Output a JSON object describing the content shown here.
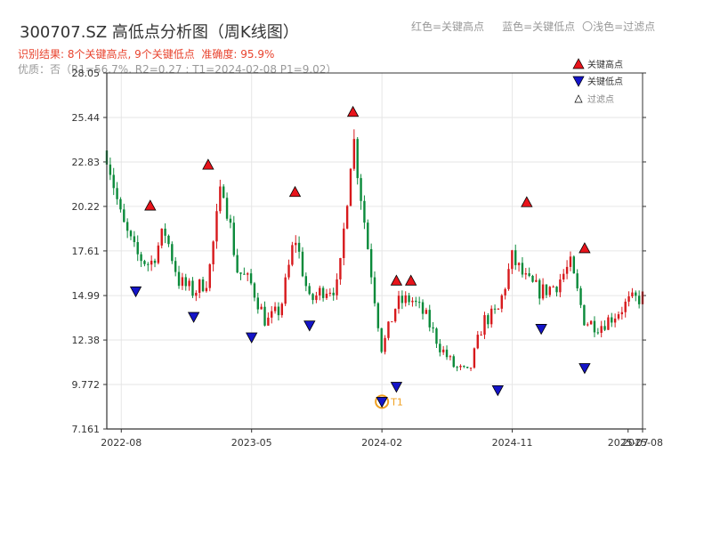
{
  "title": "300707.SZ 高低点分析图（周K线图）",
  "color_legend": {
    "red": "红色=关键高点",
    "blue": "蓝色=关键低点",
    "light": "〇浅色=过滤点"
  },
  "result_text": "识别结果: 8个关键高点, 9个关键低点",
  "accuracy_text": "准确度: 95.9%",
  "quality_text": "优质：否（R1=56.7%, R2=0.27 ; T1=2024-02-08 P1=9.02）",
  "colors": {
    "up": "#d7191c",
    "down": "#0a8a3a",
    "high_marker": "#e8141b",
    "low_marker": "#1414c8",
    "t1_marker": "#f0a020",
    "title": "#333333",
    "result": "#e8432e",
    "quality": "#999999"
  },
  "chart_data": {
    "type": "candlestick",
    "title": "300707.SZ 高低点分析图（周K线图）",
    "x_ticks": [
      "2022-08",
      "2023-05",
      "2024-02",
      "2024-11",
      "2025-07",
      "2025-08"
    ],
    "x_range": [
      "2022-07",
      "2025-08"
    ],
    "y_ticks": [
      "7.161",
      "9.772",
      "12.38",
      "14.99",
      "17.61",
      "20.22",
      "22.83",
      "25.44",
      "28.05"
    ],
    "ylim": [
      7.161,
      28.05
    ],
    "grid": true,
    "legend_position": "top-right",
    "legend": [
      "关键高点",
      "关键低点",
      "过滤点"
    ],
    "close_anchors": [
      [
        "2022-07",
        23.5
      ],
      [
        "2022-08",
        19.4
      ],
      [
        "2022-09",
        17.4
      ],
      [
        "2022-10",
        16.8
      ],
      [
        "2022-11",
        18.8
      ],
      [
        "2022-12",
        15.8
      ],
      [
        "2023-01",
        15.2
      ],
      [
        "2023-02",
        16.0
      ],
      [
        "2023-03",
        21.8
      ],
      [
        "2023-04",
        16.5
      ],
      [
        "2023-05",
        15.6
      ],
      [
        "2023-06",
        13.4
      ],
      [
        "2023-07",
        14.2
      ],
      [
        "2023-08",
        18.5
      ],
      [
        "2023-09",
        14.6
      ],
      [
        "2023-10",
        15.4
      ],
      [
        "2023-11",
        15.5
      ],
      [
        "2023-12",
        24.5
      ],
      [
        "2024-01",
        18.0
      ],
      [
        "2024-02",
        11.8
      ],
      [
        "2024-03",
        14.5
      ],
      [
        "2024-04",
        14.8
      ],
      [
        "2024-05",
        13.8
      ],
      [
        "2024-06",
        12.0
      ],
      [
        "2024-07",
        10.8
      ],
      [
        "2024-08",
        10.4
      ],
      [
        "2024-09",
        13.5
      ],
      [
        "2024-10",
        14.0
      ],
      [
        "2024-11",
        17.2
      ],
      [
        "2024-12",
        15.8
      ],
      [
        "2025-01",
        15.2
      ],
      [
        "2025-02",
        15.6
      ],
      [
        "2025-03",
        16.8
      ],
      [
        "2025-04",
        13.5
      ],
      [
        "2025-05",
        13.2
      ],
      [
        "2025-06",
        13.8
      ],
      [
        "2025-07",
        14.6
      ],
      [
        "2025-08",
        14.9
      ]
    ],
    "key_highs": [
      {
        "date": "2022-10",
        "value": 19.9
      },
      {
        "date": "2023-02",
        "value": 22.3
      },
      {
        "date": "2023-08",
        "value": 20.7
      },
      {
        "date": "2023-12",
        "value": 25.4
      },
      {
        "date": "2024-03",
        "value": 15.5
      },
      {
        "date": "2024-04",
        "value": 15.5
      },
      {
        "date": "2024-12",
        "value": 20.1
      },
      {
        "date": "2025-04",
        "value": 17.4
      }
    ],
    "key_lows": [
      {
        "date": "2022-09",
        "value": 15.5
      },
      {
        "date": "2023-01",
        "value": 14.0
      },
      {
        "date": "2023-05",
        "value": 12.8
      },
      {
        "date": "2023-09",
        "value": 13.5
      },
      {
        "date": "2024-02",
        "value": 9.02,
        "label": "T1"
      },
      {
        "date": "2024-03",
        "value": 9.9
      },
      {
        "date": "2024-10",
        "value": 9.7
      },
      {
        "date": "2025-01",
        "value": 13.3
      },
      {
        "date": "2025-04",
        "value": 11.0
      }
    ]
  }
}
